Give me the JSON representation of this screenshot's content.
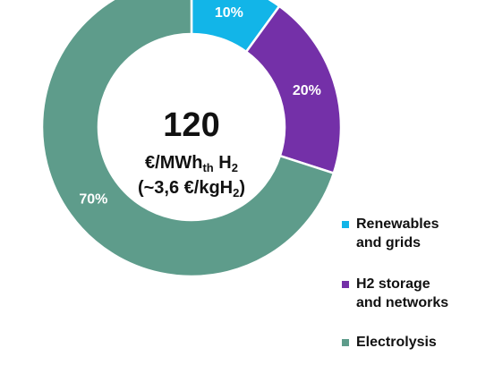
{
  "chart_data": {
    "type": "pie",
    "donut": true,
    "center": {
      "value": "120",
      "unit_main": "€/MWh",
      "unit_sub": "th",
      "unit_after": " H",
      "unit_after_sub": "2",
      "detail_main": "(~3,6 €/kgH",
      "detail_sub": "2",
      "detail_after": ")"
    },
    "slices": [
      {
        "label": "Renewables and grids",
        "value": 10,
        "display": "10%",
        "color": "#12B5E8"
      },
      {
        "label": "H2 storage and networks",
        "value": 20,
        "display": "20%",
        "color": "#7430A8"
      },
      {
        "label": "Electrolysis",
        "value": 70,
        "display": "70%",
        "color": "#5E9C8B"
      }
    ],
    "legend_position": "right",
    "data_label_color": "#ffffff"
  },
  "legend": {
    "items": [
      {
        "line1": "Renewables",
        "line2": "and grids"
      },
      {
        "line1": "H2 storage",
        "line2": "and networks"
      },
      {
        "line1": "Electrolysis",
        "line2": ""
      }
    ]
  }
}
